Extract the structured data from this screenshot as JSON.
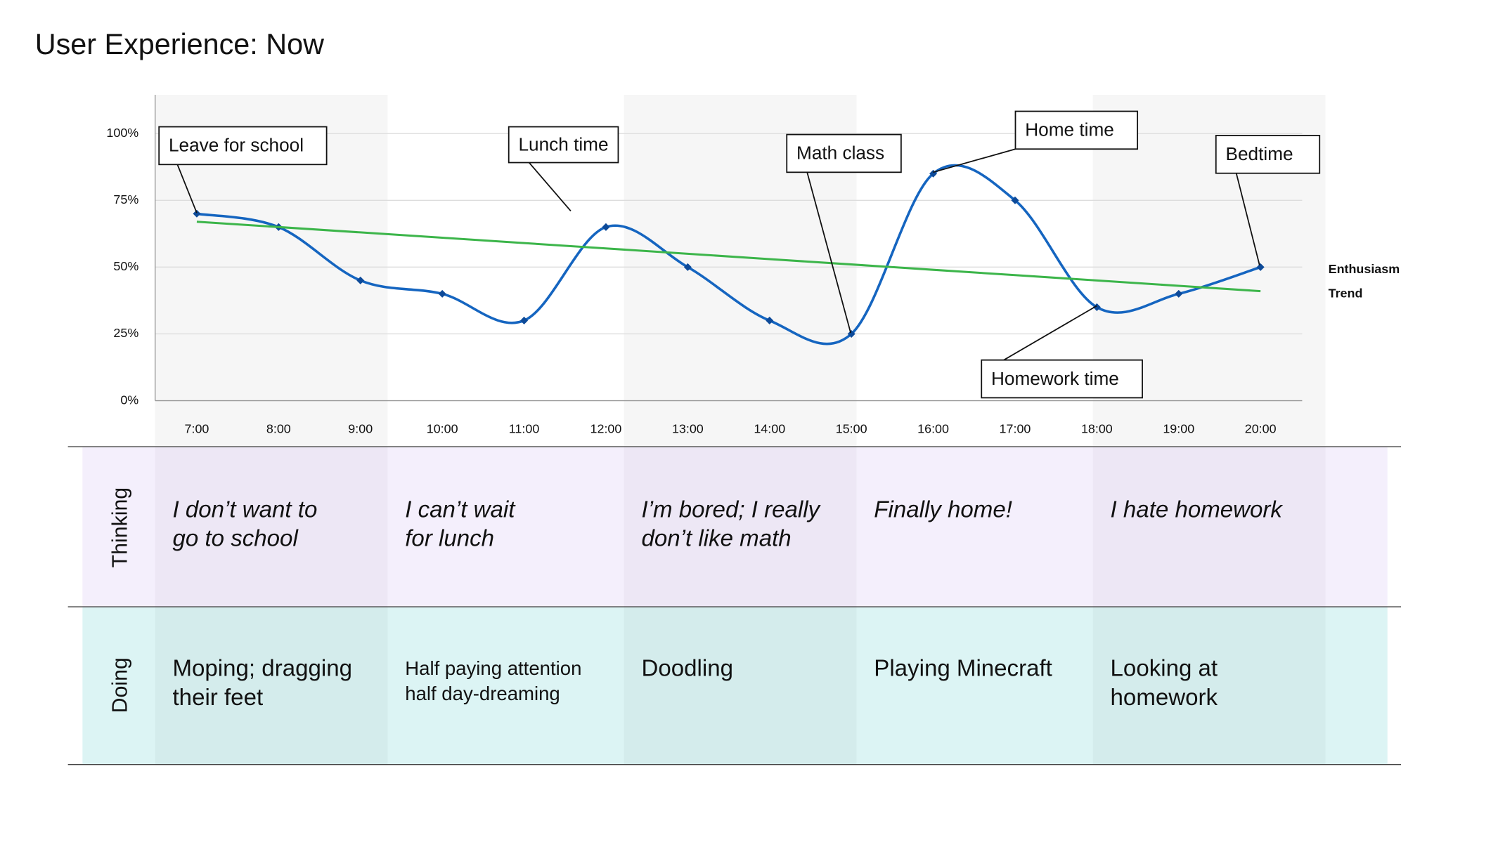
{
  "title": "User Experience: Now",
  "chart_data": {
    "type": "line",
    "categories": [
      "7:00",
      "8:00",
      "9:00",
      "10:00",
      "11:00",
      "12:00",
      "13:00",
      "14:00",
      "15:00",
      "16:00",
      "17:00",
      "18:00",
      "19:00",
      "20:00"
    ],
    "series": [
      {
        "name": "Enthusiasm",
        "color": "#1565c0",
        "values": [
          70,
          65,
          45,
          40,
          30,
          65,
          50,
          30,
          25,
          85,
          75,
          35,
          40,
          50
        ]
      },
      {
        "name": "Trend",
        "color": "#3cb54a",
        "values": [
          67,
          65,
          63,
          61,
          59,
          57,
          55,
          53,
          51,
          49,
          47,
          45,
          43,
          41
        ]
      }
    ],
    "ylim": [
      0,
      100
    ],
    "yticks": [
      {
        "value": 0,
        "label": "0%"
      },
      {
        "value": 25,
        "label": "25%"
      },
      {
        "value": 50,
        "label": "50%"
      },
      {
        "value": 75,
        "label": "75%"
      },
      {
        "value": 100,
        "label": "100%"
      }
    ],
    "grid": true,
    "annotations": [
      "Leave for school",
      "Lunch time",
      "Math class",
      "Home time",
      "Bedtime",
      "Homework time"
    ]
  },
  "rows": [
    {
      "label": "Thinking",
      "cells": [
        [
          "I don’t want to",
          "go to school"
        ],
        [
          "I can’t wait",
          "for lunch"
        ],
        [
          "I’m bored; I really",
          "don’t like math"
        ],
        [
          "Finally home!"
        ],
        [
          "I hate homework"
        ]
      ]
    },
    {
      "label": "Doing",
      "cells": [
        [
          "Moping; dragging",
          "their feet"
        ],
        [
          "Half paying attention",
          "half day-dreaming"
        ],
        [
          "Doodling"
        ],
        [
          "Playing Minecraft"
        ],
        [
          "Looking at",
          "homework"
        ]
      ]
    }
  ]
}
